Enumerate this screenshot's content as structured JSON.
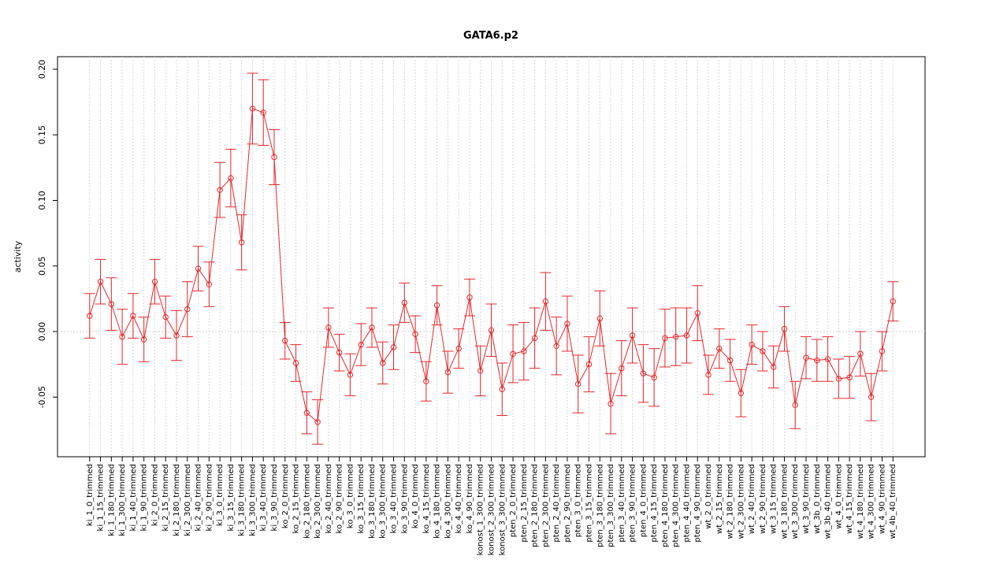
{
  "chart_data": {
    "type": "line",
    "title": "GATA6.p2",
    "y_label": "activity",
    "categories": [
      "ki_1_0_trimmed",
      "ki_1_15_trimmed",
      "ki_1_180_trimmed",
      "ki_1_300_trimmed",
      "ki_1_40_trimmed",
      "ki_1_90_trimmed",
      "ki_2_0_trimmed",
      "ki_2_15_trimmed",
      "ki_2_180_trimmed",
      "ki_2_300_trimmed",
      "ki_2_40_trimmed",
      "ki_2_90_trimmed",
      "ki_3_0_trimmed",
      "ki_3_15_trimmed",
      "ki_3_180_trimmed",
      "ki_3_300_trimmed",
      "ki_3_40_trimmed",
      "ki_3_90_trimmed",
      "ko_2_0_trimmed",
      "ko_2_15_trimmed",
      "ko_2_180_trimmed",
      "ko_2_300_trimmed",
      "ko_2_40_trimmed",
      "ko_2_90_trimmed",
      "ko_3_0_trimmed",
      "ko_3_15_trimmed",
      "ko_3_180_trimmed",
      "ko_3_300_trimmed",
      "ko_3_40_trimmed",
      "ko_3_90_trimmed",
      "ko_4_0_trimmed",
      "ko_4_15_trimmed",
      "ko_4_180_trimmed",
      "ko_4_300_trimmed",
      "ko_4_40_trimmed",
      "ko_4_90_trimmed",
      "konost_1_300_trimmed",
      "konost_2_300_trimmed",
      "konost_3_300_trimmed",
      "pten_2_0_trimmed",
      "pten_2_15_trimmed",
      "pten_2_180_trimmed",
      "pten_2_300_trimmed",
      "pten_2_40_trimmed",
      "pten_2_90_trimmed",
      "pten_3_0_trimmed",
      "pten_3_15_trimmed",
      "pten_3_180_trimmed",
      "pten_3_300_trimmed",
      "pten_3_40_trimmed",
      "pten_3_90_trimmed",
      "pten_4_0_trimmed",
      "pten_4_15_trimmed",
      "pten_4_180_trimmed",
      "pten_4_300_trimmed",
      "pten_4_40_trimmed",
      "pten_4_90_trimmed",
      "wt_2_0_trimmed",
      "wt_2_15_trimmed",
      "wt_2_180_trimmed",
      "wt_2_300_trimmed",
      "wt_2_40_trimmed",
      "wt_2_90_trimmed",
      "wt_3_15_trimmed",
      "wt_3_180_trimmed",
      "wt_3_300_trimmed",
      "wt_3_90_trimmed",
      "wt_3b_0_trimmed",
      "wt_3b_40_trimmed",
      "wt_4_0_trimmed",
      "wt_4_15_trimmed",
      "wt_4_180_trimmed",
      "wt_4_300_trimmed",
      "wt_4_90_trimmed",
      "wt_4b_40_trimmed"
    ],
    "series": [
      {
        "color": "#e8262a",
        "values": [
          0.012,
          0.038,
          0.021,
          -0.004,
          0.012,
          -0.006,
          0.038,
          0.011,
          -0.003,
          0.017,
          0.048,
          0.036,
          0.108,
          0.117,
          0.068,
          0.17,
          0.167,
          0.133,
          -0.007,
          -0.024,
          -0.062,
          -0.069,
          0.003,
          -0.016,
          -0.033,
          -0.01,
          0.003,
          -0.024,
          -0.012,
          0.022,
          -0.002,
          -0.038,
          0.02,
          -0.031,
          -0.013,
          0.026,
          -0.03,
          0.001,
          -0.044,
          -0.017,
          -0.015,
          -0.005,
          0.023,
          -0.011,
          0.006,
          -0.04,
          -0.025,
          0.01,
          -0.055,
          -0.028,
          -0.003,
          -0.032,
          -0.035,
          -0.005,
          -0.004,
          -0.003,
          0.014,
          -0.033,
          -0.013,
          -0.022,
          -0.047,
          -0.01,
          -0.015,
          -0.027,
          0.002,
          -0.056,
          -0.02,
          -0.022,
          -0.021,
          -0.036,
          -0.035,
          -0.017,
          -0.05,
          -0.015,
          0.023
        ],
        "errors": [
          0.017,
          0.017,
          0.02,
          0.021,
          0.017,
          0.017,
          0.017,
          0.016,
          0.019,
          0.021,
          0.017,
          0.017,
          0.021,
          0.022,
          0.021,
          0.027,
          0.025,
          0.021,
          0.014,
          0.014,
          0.016,
          0.017,
          0.015,
          0.014,
          0.016,
          0.016,
          0.015,
          0.016,
          0.017,
          0.015,
          0.014,
          0.015,
          0.015,
          0.016,
          0.015,
          0.014,
          0.019,
          0.02,
          0.02,
          0.022,
          0.022,
          0.023,
          0.022,
          0.022,
          0.021,
          0.022,
          0.021,
          0.021,
          0.023,
          0.021,
          0.021,
          0.022,
          0.022,
          0.022,
          0.022,
          0.021,
          0.021,
          0.015,
          0.015,
          0.016,
          0.018,
          0.015,
          0.015,
          0.016,
          0.017,
          0.018,
          0.016,
          0.016,
          0.017,
          0.015,
          0.016,
          0.017,
          0.018,
          0.015,
          0.015
        ]
      }
    ],
    "ylim": [
      -0.0955,
      0.2096
    ],
    "yticks": [
      {
        "value": -0.05,
        "label": "-0.05"
      },
      {
        "value": 0,
        "label": "0.00"
      },
      {
        "value": 0.05,
        "label": "0.05"
      },
      {
        "value": 0.1,
        "label": "0.10"
      },
      {
        "value": 0.15,
        "label": "0.15"
      },
      {
        "value": 0.2,
        "label": "0.20"
      }
    ],
    "reference_line": 0,
    "grid": true
  }
}
